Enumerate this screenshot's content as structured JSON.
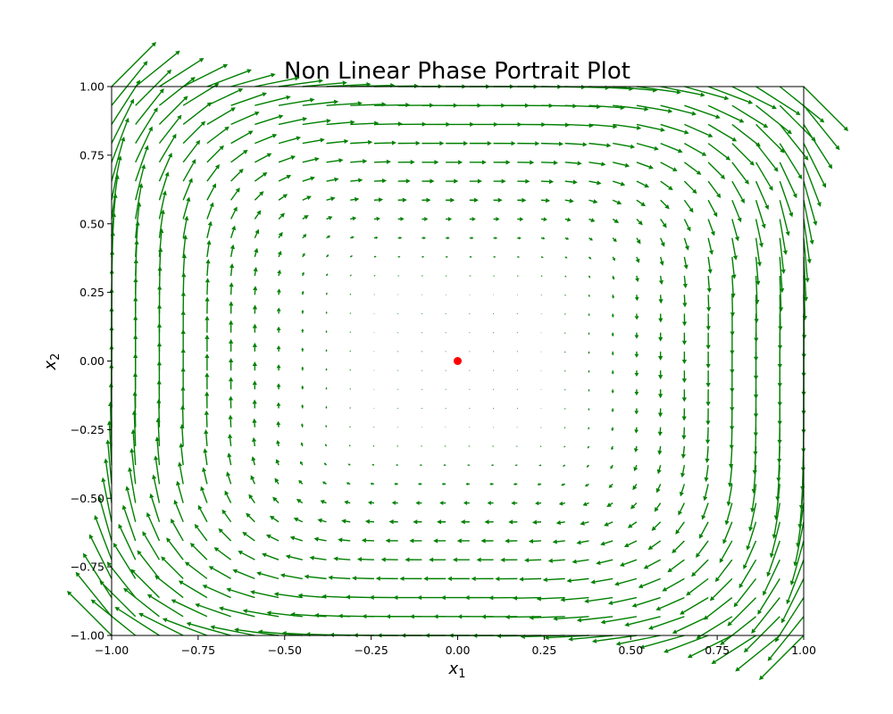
{
  "colors": {
    "arrow": "#008000",
    "equilibrium": "#ff0000",
    "axes": "#000000",
    "background": "#ffffff"
  },
  "chart_data": {
    "type": "quiver",
    "title": "Non Linear Phase Portrait Plot",
    "xlabel": {
      "main": "x",
      "sub": "1"
    },
    "ylabel": {
      "main": "x",
      "sub": "2"
    },
    "xlim": [
      -1.0,
      1.0
    ],
    "ylim": [
      -1.0,
      1.0
    ],
    "xticks": [
      -1.0,
      -0.75,
      -0.5,
      -0.25,
      0.0,
      0.25,
      0.5,
      0.75,
      1.0
    ],
    "yticks": [
      -1.0,
      -0.75,
      -0.5,
      -0.25,
      0.0,
      0.25,
      0.5,
      0.75,
      1.0
    ],
    "xtick_labels": [
      "−1.00",
      "−0.75",
      "−0.50",
      "−0.25",
      "0.00",
      "0.25",
      "0.50",
      "0.75",
      "1.00"
    ],
    "ytick_labels": [
      "−1.00",
      "−0.75",
      "−0.50",
      "−0.25",
      "0.00",
      "0.25",
      "0.50",
      "0.75",
      "1.00"
    ],
    "grid": false,
    "vector_field": {
      "dx1": "x2^3",
      "dx2": "-x1^3",
      "grid_points": 30,
      "range": [
        -1.0,
        1.0
      ]
    },
    "equilibrium_point": {
      "x": 0.0,
      "y": 0.0
    }
  }
}
